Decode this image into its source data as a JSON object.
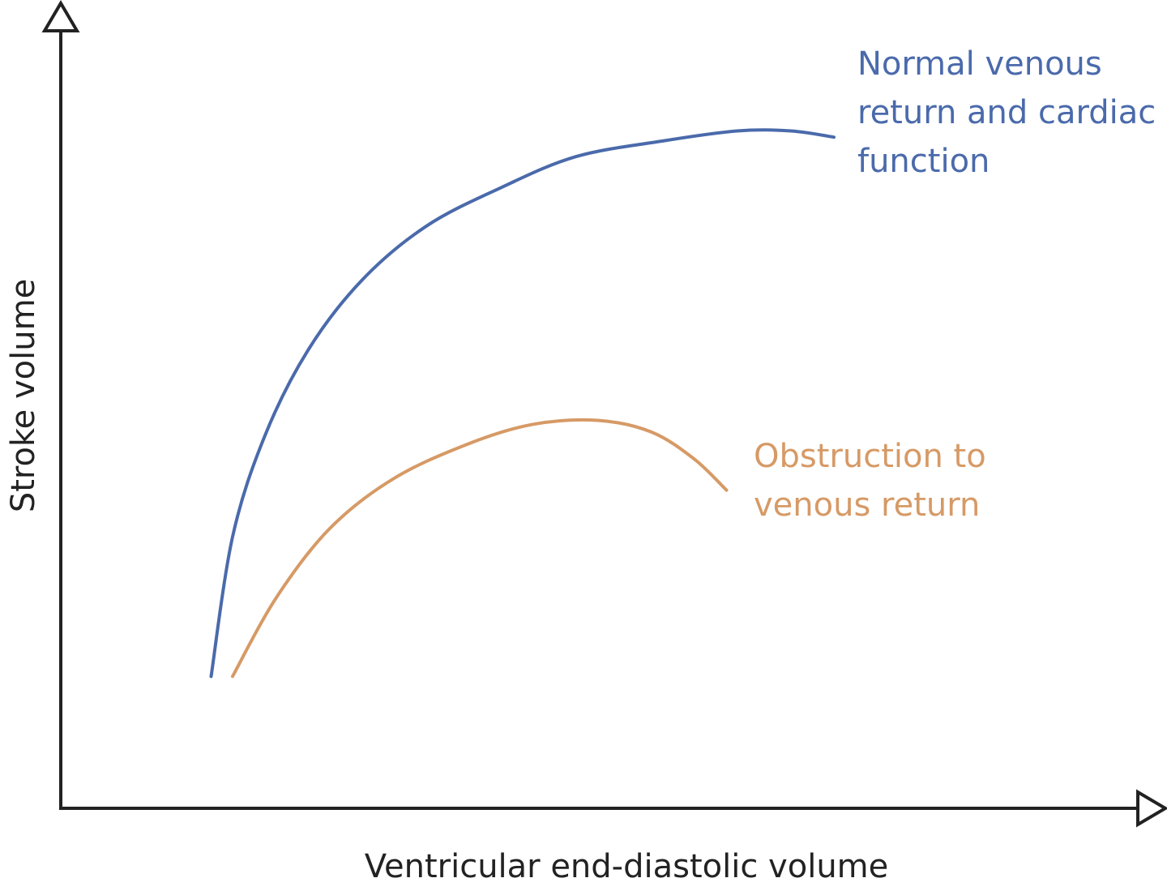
{
  "chart_data": {
    "type": "line",
    "title": "",
    "xlabel": "Ventricular end-diastolic volume",
    "ylabel": "Stroke volume",
    "xlim": [
      0,
      100
    ],
    "ylim": [
      0,
      100
    ],
    "ticks": "none",
    "grid": false,
    "legend": "inline",
    "series": [
      {
        "name": "Normal venous return and cardiac function",
        "label_lines": [
          "Normal venous",
          "return and cardiac",
          "function"
        ],
        "color": "#4a6aab",
        "x": [
          14,
          16,
          19,
          23,
          28,
          34,
          41,
          48,
          56,
          63,
          68,
          72
        ],
        "y": [
          17,
          35,
          48,
          59,
          68,
          75,
          80,
          84,
          86,
          87.3,
          87.3,
          86.5
        ]
      },
      {
        "name": "Obstruction to venous return",
        "label_lines": [
          "Obstruction to",
          "venous return"
        ],
        "color": "#d69a66",
        "x": [
          16,
          20,
          25,
          31,
          38,
          44,
          50,
          55,
          59,
          62
        ],
        "y": [
          17,
          27,
          36,
          42.5,
          47,
          49.5,
          50,
          48.5,
          45,
          41
        ]
      }
    ]
  }
}
